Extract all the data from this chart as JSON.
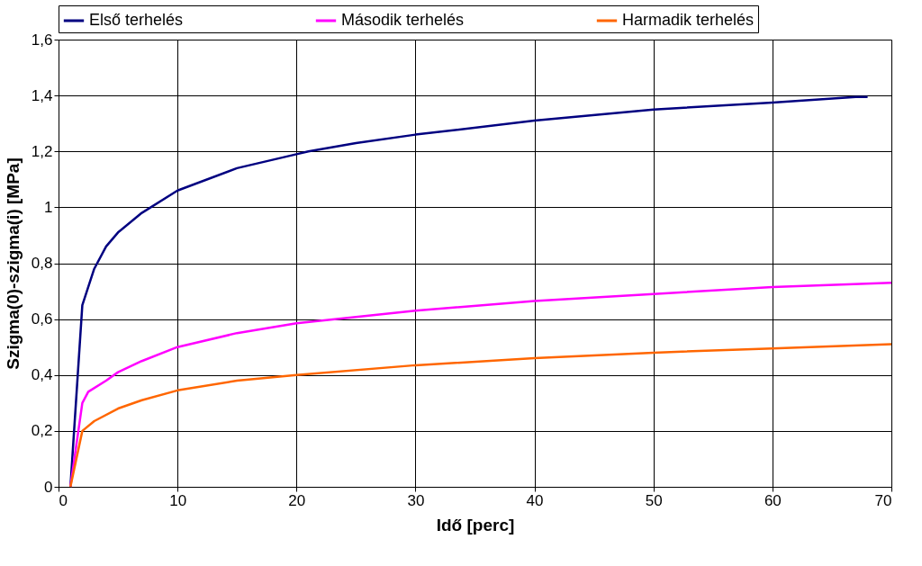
{
  "chart_data": {
    "type": "line",
    "xlabel": "Idő [perc]",
    "ylabel": "Szigma(0)-szigma(i) [MPa]",
    "xlim": [
      0,
      70
    ],
    "xticks": [
      0,
      10,
      20,
      30,
      40,
      50,
      60,
      70
    ],
    "ylim": [
      0,
      1.6
    ],
    "yticks": [
      0,
      {
        "value": 0.2,
        "label": "0,2"
      },
      {
        "value": 0.4,
        "label": "0,4"
      },
      {
        "value": 0.6,
        "label": "0,6"
      },
      {
        "value": 0.8,
        "label": "0,8"
      },
      1,
      {
        "value": 1.2,
        "label": "1,2"
      },
      {
        "value": 1.4,
        "label": "1,4"
      },
      {
        "value": 1.6,
        "label": "1,6"
      }
    ],
    "grid": true,
    "legend": "top",
    "marker": "none",
    "line_style": "solid",
    "series": [
      {
        "name": "Első terhelés",
        "color": "#000080",
        "x": [
          1,
          2,
          3,
          4,
          5,
          7,
          10,
          15,
          20,
          21,
          25,
          30,
          40,
          50,
          60,
          67,
          68
        ],
        "values": [
          0,
          0.65,
          0.78,
          0.86,
          0.91,
          0.98,
          1.06,
          1.14,
          1.19,
          1.2,
          1.23,
          1.26,
          1.31,
          1.35,
          1.375,
          1.395,
          1.395
        ]
      },
      {
        "name": "Második terhelés",
        "color": "#ff00ff",
        "x": [
          1,
          2,
          2.5,
          4,
          5,
          7,
          10,
          15,
          20,
          30,
          40,
          50,
          60,
          70
        ],
        "values": [
          0,
          0.3,
          0.34,
          0.38,
          0.41,
          0.45,
          0.5,
          0.55,
          0.585,
          0.63,
          0.665,
          0.69,
          0.715,
          0.73
        ]
      },
      {
        "name": "Harmadik terhelés",
        "color": "#ff6600",
        "x": [
          1,
          2,
          3,
          5,
          7,
          10,
          15,
          20,
          30,
          40,
          50,
          60,
          70
        ],
        "values": [
          0,
          0.2,
          0.235,
          0.28,
          0.31,
          0.345,
          0.38,
          0.4,
          0.435,
          0.46,
          0.48,
          0.495,
          0.51
        ]
      }
    ]
  }
}
